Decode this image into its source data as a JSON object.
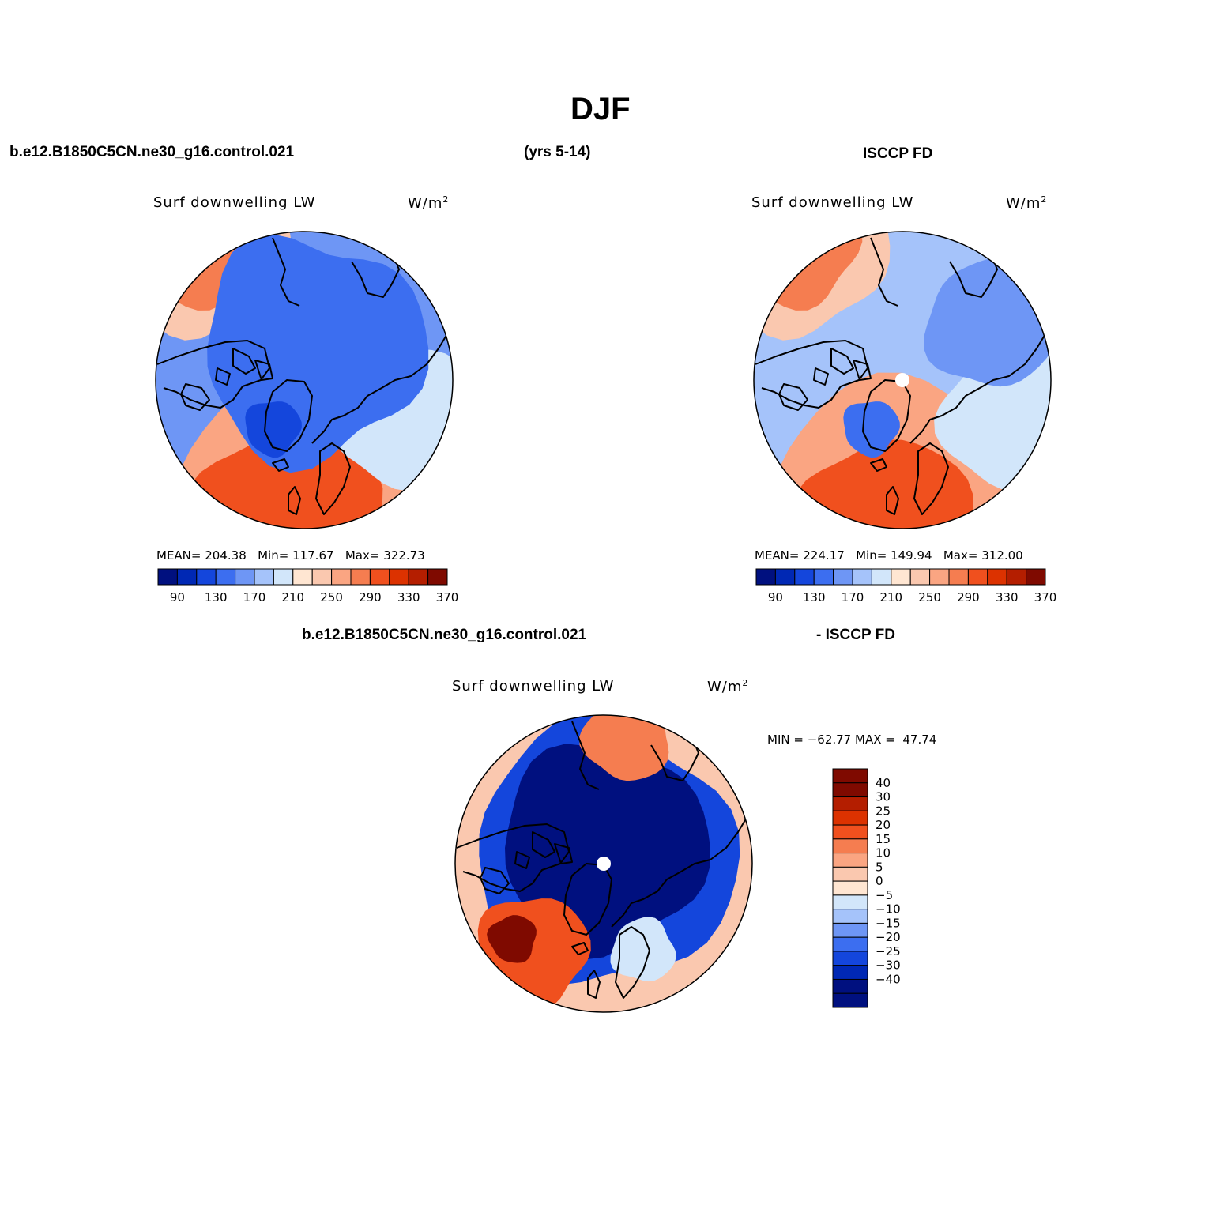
{
  "title": "DJF",
  "header": {
    "model_case": "b.e12.B1850C5CN.ne30_g16.control.021",
    "years": "(yrs 5-14)",
    "obs": "ISCCP FD"
  },
  "diff_header": {
    "model_case": "b.e12.B1850C5CN.ne30_g16.control.021",
    "obs": "- ISCCP FD"
  },
  "palette_abs": [
    "#00107f",
    "#0028b4",
    "#1446dc",
    "#3c6ef0",
    "#6e96f5",
    "#a5c3fa",
    "#d2e6fa",
    "#ffe6d2",
    "#fac8af",
    "#faa582",
    "#f57d50",
    "#f0501e",
    "#dc3200",
    "#b41e00",
    "#7f0a00"
  ],
  "palette_diff": [
    "#00107f",
    "#0028b4",
    "#1446dc",
    "#3c6ef0",
    "#6e96f5",
    "#a5c3fa",
    "#d2e6fa",
    "#ffe6d2",
    "#fac8af",
    "#faa582",
    "#f57d50",
    "#f0501e",
    "#dc3200",
    "#b41e00",
    "#7f0a00"
  ],
  "panels": [
    {
      "name": "model",
      "variable": "Surf downwelling LW",
      "units": "W/m",
      "units_sup": "2",
      "stats": {
        "mean_label": "MEAN=",
        "mean": "204.38",
        "min_label": "Min=",
        "min": "117.67",
        "max_label": "Max=",
        "max": "322.73"
      },
      "colorbar_ticks": [
        "90",
        "130",
        "170",
        "210",
        "250",
        "290",
        "330",
        "370"
      ],
      "has_pole_hole": false
    },
    {
      "name": "obs",
      "variable": "Surf downwelling LW",
      "units": "W/m",
      "units_sup": "2",
      "stats": {
        "mean_label": "MEAN=",
        "mean": "224.17",
        "min_label": "Min=",
        "min": "149.94",
        "max_label": "Max=",
        "max": "312.00"
      },
      "colorbar_ticks": [
        "90",
        "130",
        "170",
        "210",
        "250",
        "290",
        "330",
        "370"
      ],
      "has_pole_hole": true
    },
    {
      "name": "diff",
      "variable": "Surf downwelling LW",
      "units": "W/m",
      "units_sup": "2",
      "stats": {
        "min_label": "MIN =",
        "min": "−62.77",
        "max_label": "MAX =",
        "max": "47.74"
      },
      "colorbar_ticks": [
        "40",
        "30",
        "25",
        "20",
        "15",
        "10",
        "5",
        "0",
        "−5",
        "−10",
        "−15",
        "−20",
        "−25",
        "−30",
        "−40"
      ],
      "has_pole_hole": true
    }
  ]
}
